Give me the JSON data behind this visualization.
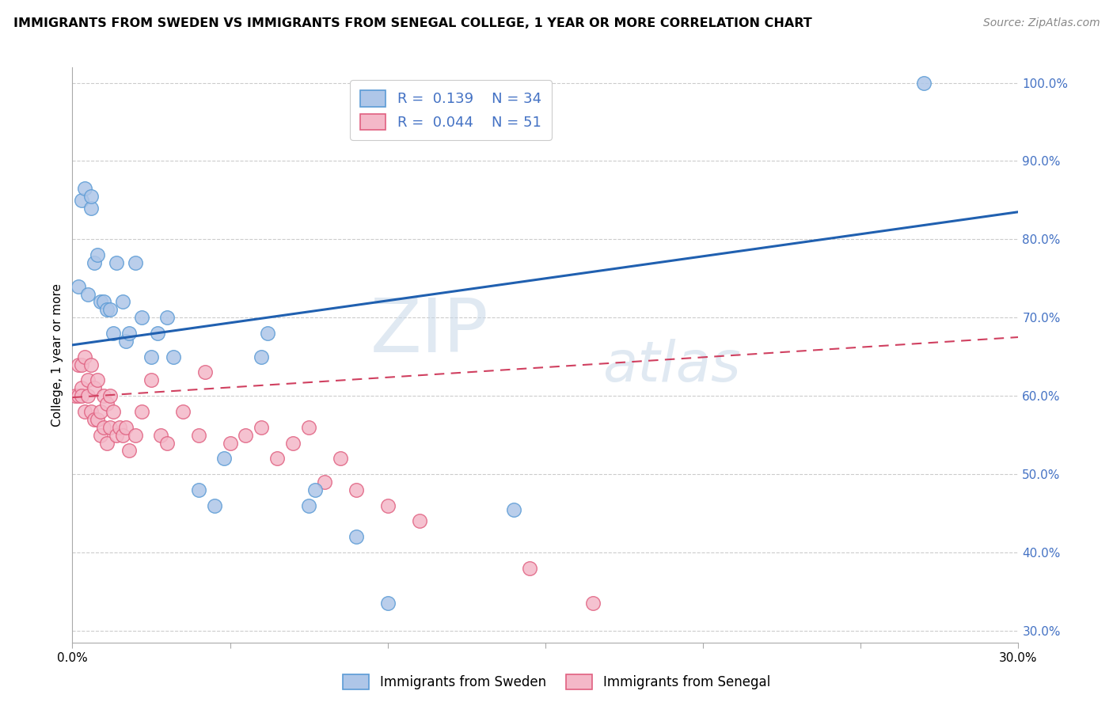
{
  "title": "IMMIGRANTS FROM SWEDEN VS IMMIGRANTS FROM SENEGAL COLLEGE, 1 YEAR OR MORE CORRELATION CHART",
  "source": "Source: ZipAtlas.com",
  "ylabel": "College, 1 year or more",
  "xlim": [
    0.0,
    0.3
  ],
  "ylim": [
    0.285,
    1.02
  ],
  "sweden_color": "#aec6e8",
  "sweden_edge_color": "#5b9bd5",
  "senegal_color": "#f4b8c8",
  "senegal_edge_color": "#e06080",
  "sweden_R": 0.139,
  "sweden_N": 34,
  "senegal_R": 0.044,
  "senegal_N": 51,
  "sweden_line_color": "#2060b0",
  "senegal_line_color": "#d04060",
  "watermark_top": "ZIP",
  "watermark_bot": "atlas",
  "sweden_line_x0": 0.0,
  "sweden_line_y0": 0.665,
  "sweden_line_x1": 0.3,
  "sweden_line_y1": 0.835,
  "senegal_line_x0": 0.0,
  "senegal_line_y0": 0.598,
  "senegal_line_x1": 0.3,
  "senegal_line_y1": 0.675,
  "sweden_scatter_x": [
    0.002,
    0.003,
    0.004,
    0.005,
    0.006,
    0.006,
    0.007,
    0.008,
    0.009,
    0.01,
    0.011,
    0.012,
    0.013,
    0.014,
    0.016,
    0.017,
    0.018,
    0.02,
    0.022,
    0.025,
    0.027,
    0.03,
    0.032,
    0.04,
    0.045,
    0.048,
    0.06,
    0.062,
    0.075,
    0.077,
    0.09,
    0.1,
    0.14,
    0.27
  ],
  "sweden_scatter_y": [
    0.74,
    0.85,
    0.865,
    0.73,
    0.84,
    0.855,
    0.77,
    0.78,
    0.72,
    0.72,
    0.71,
    0.71,
    0.68,
    0.77,
    0.72,
    0.67,
    0.68,
    0.77,
    0.7,
    0.65,
    0.68,
    0.7,
    0.65,
    0.48,
    0.46,
    0.52,
    0.65,
    0.68,
    0.46,
    0.48,
    0.42,
    0.335,
    0.455,
    1.0
  ],
  "senegal_scatter_x": [
    0.001,
    0.002,
    0.002,
    0.003,
    0.003,
    0.003,
    0.004,
    0.004,
    0.005,
    0.005,
    0.006,
    0.006,
    0.007,
    0.007,
    0.008,
    0.008,
    0.009,
    0.009,
    0.01,
    0.01,
    0.011,
    0.011,
    0.012,
    0.012,
    0.013,
    0.014,
    0.015,
    0.016,
    0.017,
    0.018,
    0.02,
    0.022,
    0.025,
    0.028,
    0.03,
    0.035,
    0.04,
    0.042,
    0.05,
    0.055,
    0.06,
    0.065,
    0.07,
    0.075,
    0.08,
    0.085,
    0.09,
    0.1,
    0.11,
    0.145,
    0.165
  ],
  "senegal_scatter_y": [
    0.6,
    0.64,
    0.6,
    0.61,
    0.64,
    0.6,
    0.65,
    0.58,
    0.62,
    0.6,
    0.64,
    0.58,
    0.61,
    0.57,
    0.62,
    0.57,
    0.58,
    0.55,
    0.6,
    0.56,
    0.59,
    0.54,
    0.6,
    0.56,
    0.58,
    0.55,
    0.56,
    0.55,
    0.56,
    0.53,
    0.55,
    0.58,
    0.62,
    0.55,
    0.54,
    0.58,
    0.55,
    0.63,
    0.54,
    0.55,
    0.56,
    0.52,
    0.54,
    0.56,
    0.49,
    0.52,
    0.48,
    0.46,
    0.44,
    0.38,
    0.335
  ]
}
